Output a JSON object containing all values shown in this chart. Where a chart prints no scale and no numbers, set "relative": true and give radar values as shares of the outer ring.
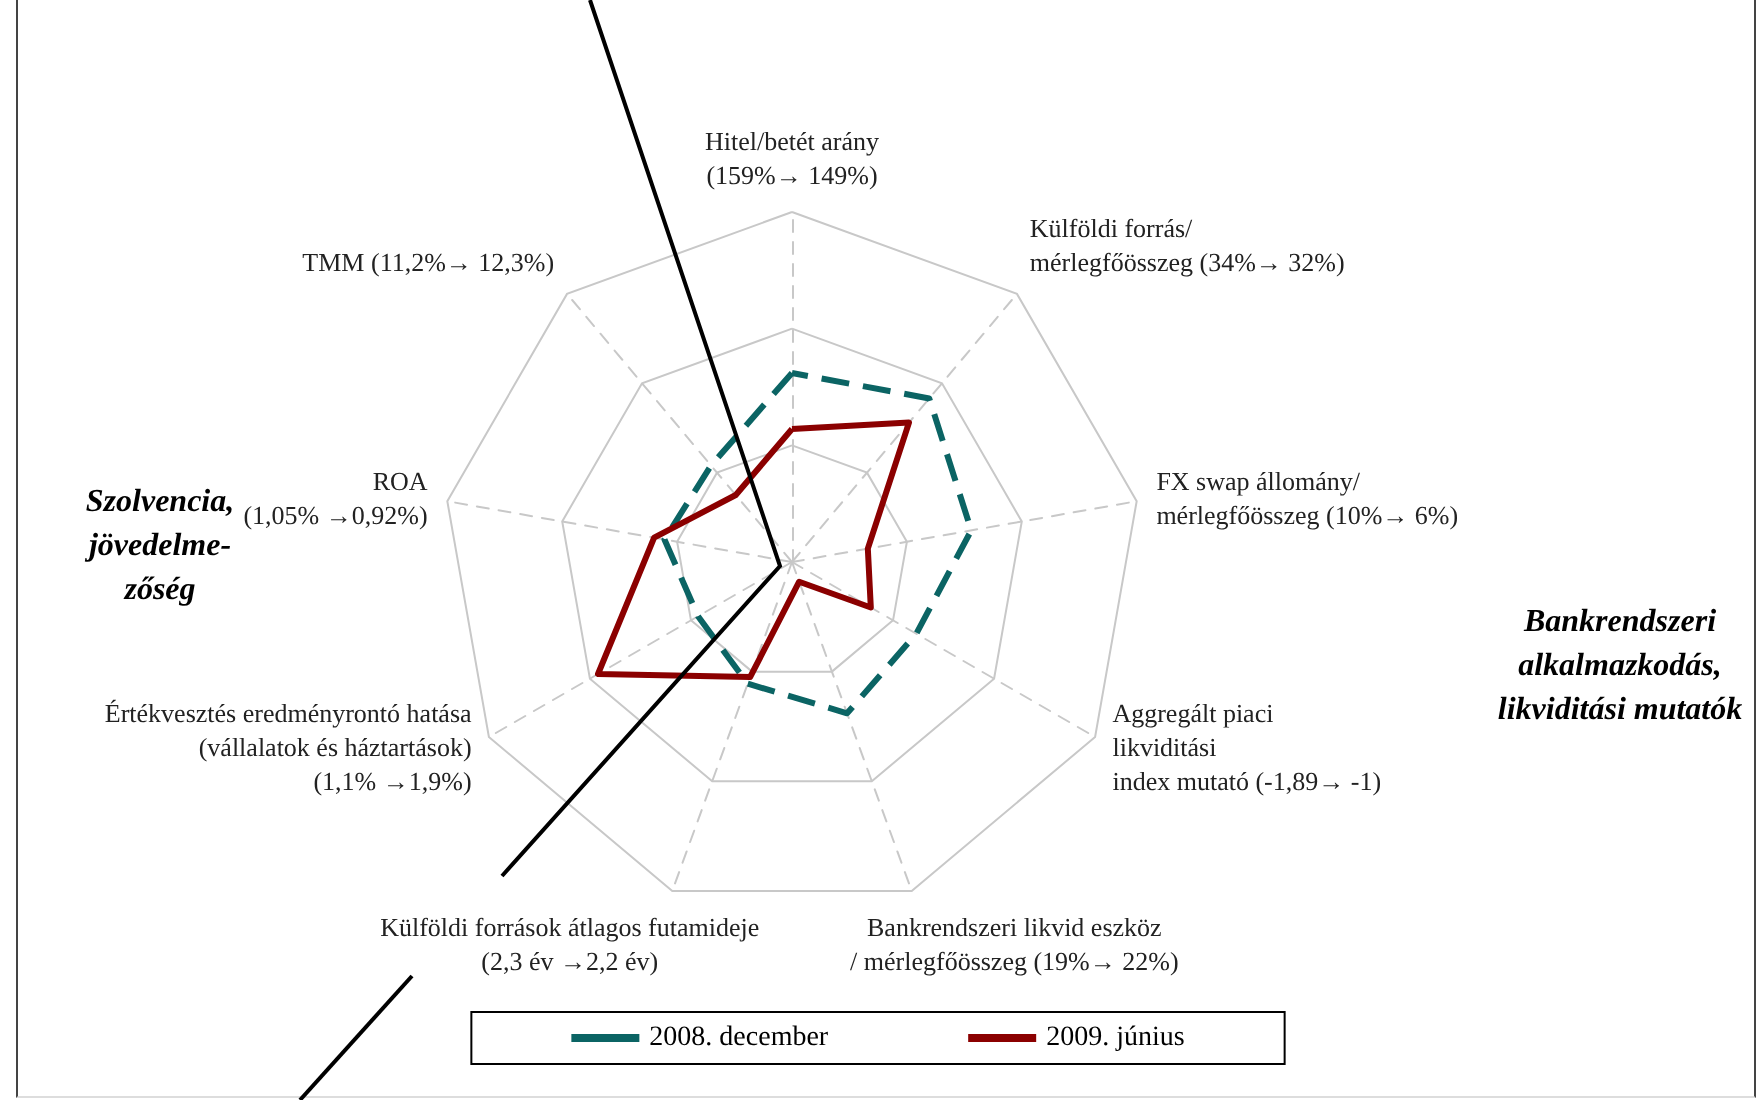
{
  "chart_data": {
    "type": "radar",
    "relative": true,
    "categories": [
      "Hitel/betét arány\n(159%→ 149%)",
      "Külföldi forrás/\nmérlegfőösszeg (34%→ 32%)",
      "FX swap állomány/\nmérlegfőösszeg (10%→ 6%)",
      "Aggregált piaci\nlikviditási\nindex mutató (-1,89→ -1)",
      "Bankrendszeri likvid eszköz\n/ mérlegfőösszeg (19%→ 22%)",
      "Külföldi források átlagos futamideje\n(2,3 év →2,2 év)",
      "Értékvesztés eredményrontó hatása\n(vállalatok és háztartások)\n(1,1% →1,9%)",
      "ROA\n(1,05% →0,92%)",
      "TMM (11,2%→ 12,3%)"
    ],
    "series": [
      {
        "name": "2008. december",
        "color": "#0b6464",
        "line_style": "dashed",
        "values": [
          0.54,
          0.61,
          0.52,
          0.41,
          0.46,
          0.37,
          0.31,
          0.37,
          0.36
        ]
      },
      {
        "name": "2009. június",
        "color": "#8b0000",
        "line_style": "solid",
        "values": [
          0.38,
          0.52,
          0.22,
          0.26,
          0.06,
          0.35,
          0.64,
          0.4,
          0.25
        ]
      }
    ],
    "annotations": [
      "Szolvencia,\njövedelme-\nzőség",
      "Bankrendszeri\nalkalmazkodás,\nlikviditási mutatók"
    ],
    "grid": true,
    "legend": "bottom",
    "marker": "none"
  }
}
